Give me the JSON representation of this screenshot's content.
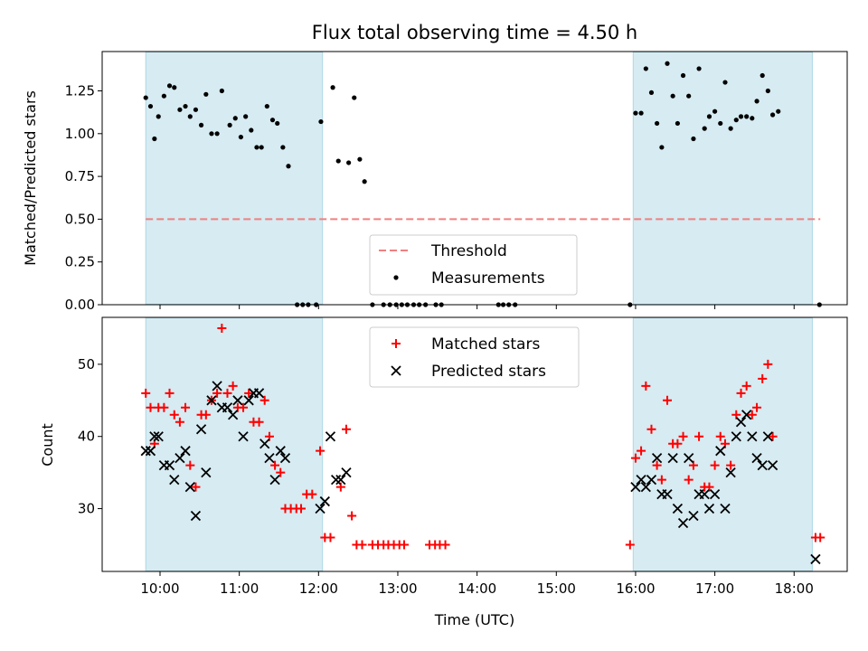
{
  "title": "Flux total observing time = 4.50 h",
  "chart_data": [
    {
      "type": "scatter",
      "panel": "top",
      "ylabel": "Matched/Predicted stars",
      "ylim": [
        0,
        1.48
      ],
      "yticks": [
        "0.00",
        "0.25",
        "0.50",
        "0.75",
        "1.00",
        "1.25"
      ],
      "shaded_intervals_hours": [
        [
          9.82,
          12.05
        ],
        [
          15.97,
          18.23
        ]
      ],
      "threshold": {
        "name": "Threshold",
        "value": 0.5,
        "x_range_hours": [
          9.82,
          18.33
        ],
        "color": "#f08080"
      },
      "series": [
        {
          "name": "Measurements",
          "color": "#000000",
          "marker": "dot",
          "points": [
            [
              9.82,
              1.21
            ],
            [
              9.88,
              1.16
            ],
            [
              9.93,
              0.97
            ],
            [
              9.98,
              1.1
            ],
            [
              10.05,
              1.22
            ],
            [
              10.12,
              1.28
            ],
            [
              10.18,
              1.27
            ],
            [
              10.25,
              1.14
            ],
            [
              10.32,
              1.16
            ],
            [
              10.38,
              1.1
            ],
            [
              10.45,
              1.14
            ],
            [
              10.52,
              1.05
            ],
            [
              10.58,
              1.23
            ],
            [
              10.65,
              1.0
            ],
            [
              10.72,
              1.0
            ],
            [
              10.78,
              1.25
            ],
            [
              10.88,
              1.05
            ],
            [
              10.95,
              1.09
            ],
            [
              11.02,
              0.98
            ],
            [
              11.08,
              1.1
            ],
            [
              11.15,
              1.02
            ],
            [
              11.22,
              0.92
            ],
            [
              11.28,
              0.92
            ],
            [
              11.35,
              1.16
            ],
            [
              11.42,
              1.08
            ],
            [
              11.48,
              1.06
            ],
            [
              11.55,
              0.92
            ],
            [
              11.62,
              0.81
            ],
            [
              11.73,
              0
            ],
            [
              11.8,
              0
            ],
            [
              11.87,
              0
            ],
            [
              11.97,
              0
            ],
            [
              12.03,
              1.07
            ],
            [
              12.18,
              1.27
            ],
            [
              12.25,
              0.84
            ],
            [
              12.38,
              0.83
            ],
            [
              12.45,
              1.21
            ],
            [
              12.52,
              0.85
            ],
            [
              12.58,
              0.72
            ],
            [
              12.68,
              0
            ],
            [
              12.82,
              0
            ],
            [
              12.9,
              0
            ],
            [
              12.98,
              0
            ],
            [
              13.05,
              0
            ],
            [
              13.12,
              0
            ],
            [
              13.2,
              0
            ],
            [
              13.27,
              0
            ],
            [
              13.35,
              0
            ],
            [
              13.48,
              0
            ],
            [
              13.55,
              0
            ],
            [
              14.27,
              0
            ],
            [
              14.33,
              0
            ],
            [
              14.4,
              0
            ],
            [
              14.48,
              0
            ],
            [
              15.93,
              0
            ],
            [
              16.0,
              1.12
            ],
            [
              16.07,
              1.12
            ],
            [
              16.13,
              1.38
            ],
            [
              16.2,
              1.24
            ],
            [
              16.27,
              1.06
            ],
            [
              16.33,
              0.92
            ],
            [
              16.4,
              1.41
            ],
            [
              16.47,
              1.22
            ],
            [
              16.53,
              1.06
            ],
            [
              16.6,
              1.34
            ],
            [
              16.67,
              1.22
            ],
            [
              16.73,
              0.97
            ],
            [
              16.8,
              1.38
            ],
            [
              16.87,
              1.03
            ],
            [
              16.93,
              1.1
            ],
            [
              17.0,
              1.13
            ],
            [
              17.07,
              1.06
            ],
            [
              17.13,
              1.3
            ],
            [
              17.2,
              1.03
            ],
            [
              17.27,
              1.08
            ],
            [
              17.33,
              1.1
            ],
            [
              17.4,
              1.1
            ],
            [
              17.47,
              1.09
            ],
            [
              17.53,
              1.19
            ],
            [
              17.6,
              1.34
            ],
            [
              17.67,
              1.25
            ],
            [
              17.73,
              1.11
            ],
            [
              17.8,
              1.13
            ],
            [
              18.32,
              0
            ]
          ]
        }
      ],
      "legend": {
        "position": "lower-center",
        "entries": [
          "Threshold",
          "Measurements"
        ]
      }
    },
    {
      "type": "scatter",
      "panel": "bottom",
      "xlabel": "Time (UTC)",
      "ylabel": "Count",
      "xlim": [
        9.27,
        18.67
      ],
      "ylim": [
        21.3,
        56.5
      ],
      "xticks": [
        "10:00",
        "11:00",
        "12:00",
        "13:00",
        "14:00",
        "15:00",
        "16:00",
        "17:00",
        "18:00"
      ],
      "yticks": [
        "30",
        "40",
        "50"
      ],
      "shaded_intervals_hours": [
        [
          9.82,
          12.05
        ],
        [
          15.97,
          18.23
        ]
      ],
      "series": [
        {
          "name": "Matched stars",
          "color": "#ff0000",
          "marker": "plus",
          "points": [
            [
              9.82,
              46
            ],
            [
              9.88,
              44
            ],
            [
              9.93,
              39
            ],
            [
              9.98,
              44
            ],
            [
              10.05,
              44
            ],
            [
              10.12,
              46
            ],
            [
              10.18,
              43
            ],
            [
              10.25,
              42
            ],
            [
              10.32,
              44
            ],
            [
              10.38,
              36
            ],
            [
              10.45,
              33
            ],
            [
              10.52,
              43
            ],
            [
              10.58,
              43
            ],
            [
              10.65,
              45
            ],
            [
              10.72,
              46
            ],
            [
              10.78,
              55
            ],
            [
              10.85,
              46
            ],
            [
              10.92,
              47
            ],
            [
              10.98,
              44
            ],
            [
              11.05,
              44
            ],
            [
              11.12,
              46
            ],
            [
              11.18,
              42
            ],
            [
              11.25,
              42
            ],
            [
              11.32,
              45
            ],
            [
              11.38,
              40
            ],
            [
              11.45,
              36
            ],
            [
              11.52,
              35
            ],
            [
              11.58,
              30
            ],
            [
              11.65,
              30
            ],
            [
              11.72,
              30
            ],
            [
              11.78,
              30
            ],
            [
              11.85,
              32
            ],
            [
              11.92,
              32
            ],
            [
              12.02,
              38
            ],
            [
              12.08,
              26
            ],
            [
              12.15,
              26
            ],
            [
              12.28,
              33
            ],
            [
              12.35,
              41
            ],
            [
              12.42,
              29
            ],
            [
              12.48,
              25
            ],
            [
              12.55,
              25
            ],
            [
              12.68,
              25
            ],
            [
              12.75,
              25
            ],
            [
              12.82,
              25
            ],
            [
              12.88,
              25
            ],
            [
              12.95,
              25
            ],
            [
              13.02,
              25
            ],
            [
              13.08,
              25
            ],
            [
              13.4,
              25
            ],
            [
              13.47,
              25
            ],
            [
              13.53,
              25
            ],
            [
              13.6,
              25
            ],
            [
              15.93,
              25
            ],
            [
              16.0,
              37
            ],
            [
              16.07,
              38
            ],
            [
              16.13,
              47
            ],
            [
              16.2,
              41
            ],
            [
              16.27,
              36
            ],
            [
              16.33,
              34
            ],
            [
              16.4,
              45
            ],
            [
              16.47,
              39
            ],
            [
              16.53,
              39
            ],
            [
              16.6,
              40
            ],
            [
              16.67,
              34
            ],
            [
              16.73,
              36
            ],
            [
              16.8,
              40
            ],
            [
              16.87,
              33
            ],
            [
              16.93,
              33
            ],
            [
              17.0,
              36
            ],
            [
              17.07,
              40
            ],
            [
              17.13,
              39
            ],
            [
              17.2,
              36
            ],
            [
              17.27,
              43
            ],
            [
              17.33,
              46
            ],
            [
              17.4,
              47
            ],
            [
              17.47,
              43
            ],
            [
              17.53,
              44
            ],
            [
              17.6,
              48
            ],
            [
              17.67,
              50
            ],
            [
              17.73,
              40
            ],
            [
              18.27,
              26
            ],
            [
              18.33,
              26
            ]
          ]
        },
        {
          "name": "Predicted stars",
          "color": "#000000",
          "marker": "x",
          "points": [
            [
              9.82,
              38
            ],
            [
              9.88,
              38
            ],
            [
              9.93,
              40
            ],
            [
              9.98,
              40
            ],
            [
              10.05,
              36
            ],
            [
              10.12,
              36
            ],
            [
              10.18,
              34
            ],
            [
              10.25,
              37
            ],
            [
              10.32,
              38
            ],
            [
              10.38,
              33
            ],
            [
              10.45,
              29
            ],
            [
              10.52,
              41
            ],
            [
              10.58,
              35
            ],
            [
              10.65,
              45
            ],
            [
              10.72,
              47
            ],
            [
              10.78,
              44
            ],
            [
              10.85,
              44
            ],
            [
              10.92,
              43
            ],
            [
              10.98,
              45
            ],
            [
              11.05,
              40
            ],
            [
              11.12,
              45
            ],
            [
              11.18,
              46
            ],
            [
              11.25,
              46
            ],
            [
              11.32,
              39
            ],
            [
              11.38,
              37
            ],
            [
              11.45,
              34
            ],
            [
              11.52,
              38
            ],
            [
              11.58,
              37
            ],
            [
              12.02,
              30
            ],
            [
              12.08,
              31
            ],
            [
              12.15,
              40
            ],
            [
              12.22,
              34
            ],
            [
              12.28,
              34
            ],
            [
              12.35,
              35
            ],
            [
              16.0,
              33
            ],
            [
              16.07,
              34
            ],
            [
              16.13,
              33
            ],
            [
              16.2,
              34
            ],
            [
              16.27,
              37
            ],
            [
              16.33,
              32
            ],
            [
              16.4,
              32
            ],
            [
              16.47,
              37
            ],
            [
              16.53,
              30
            ],
            [
              16.6,
              28
            ],
            [
              16.67,
              37
            ],
            [
              16.73,
              29
            ],
            [
              16.8,
              32
            ],
            [
              16.87,
              32
            ],
            [
              16.93,
              30
            ],
            [
              17.0,
              32
            ],
            [
              17.07,
              38
            ],
            [
              17.13,
              30
            ],
            [
              17.2,
              35
            ],
            [
              17.27,
              40
            ],
            [
              17.33,
              42
            ],
            [
              17.4,
              43
            ],
            [
              17.47,
              40
            ],
            [
              17.53,
              37
            ],
            [
              17.6,
              36
            ],
            [
              17.67,
              40
            ],
            [
              17.73,
              36
            ],
            [
              18.27,
              23
            ]
          ]
        }
      ],
      "legend": {
        "position": "upper-center",
        "entries": [
          "Matched stars",
          "Predicted stars"
        ]
      }
    }
  ]
}
